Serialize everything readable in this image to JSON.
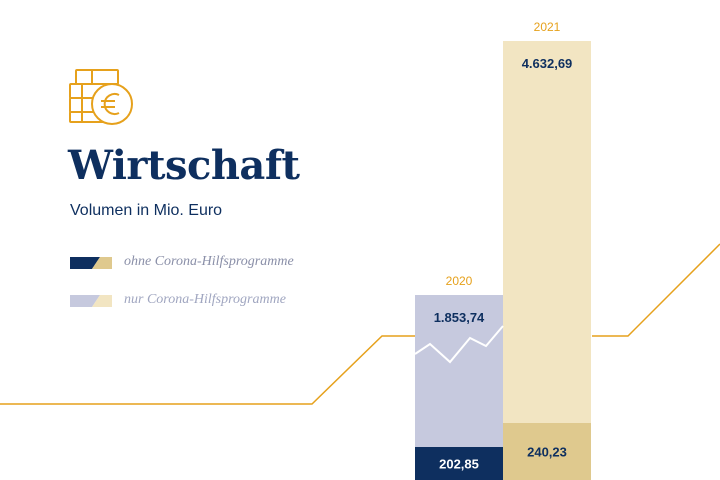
{
  "header": {
    "title": "Wirtschaft",
    "subtitle": "Volumen in Mio. Euro"
  },
  "icons": {
    "header_icon": "coins-euro-icon"
  },
  "colors": {
    "navy": "#0e2f5f",
    "gold": "#e6a11c",
    "lavender": "#c6c9de",
    "sand": "#f2e5c2",
    "tan": "#dfc98e"
  },
  "legend": [
    {
      "label": "ohne Corona-Hilfsprogramme"
    },
    {
      "label": "nur Corona-Hilfsprogramme"
    }
  ],
  "chart_data": {
    "type": "bar",
    "stacked": true,
    "categories": [
      "2020",
      "2021"
    ],
    "series": [
      {
        "name": "ohne Corona-Hilfsprogramme",
        "values": [
          202.85,
          240.23
        ],
        "labels": [
          "202,85",
          "240,23"
        ]
      },
      {
        "name": "nur Corona-Hilfsprogramme",
        "values": [
          1853.74,
          4632.69
        ],
        "labels": [
          "1.853,74",
          "4.632,69"
        ]
      }
    ],
    "title": "Wirtschaft",
    "subtitle": "Volumen in Mio. Euro",
    "legend_position": "left",
    "grid": false
  }
}
